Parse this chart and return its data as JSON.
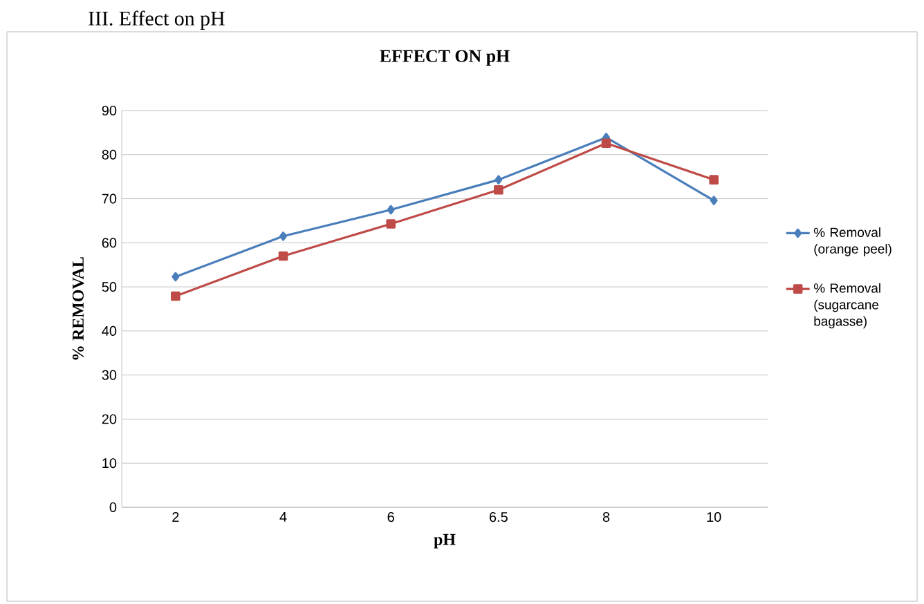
{
  "chart_data": {
    "type": "line",
    "title": "EFFECT ON pH",
    "xlabel": "pH",
    "ylabel": "% REMOVAL",
    "annotations": [
      "III.  Effect on pH"
    ],
    "categories": [
      "2",
      "4",
      "6",
      "6.5",
      "8",
      "10"
    ],
    "ylim": [
      0,
      90
    ],
    "yticks": [
      0,
      10,
      20,
      30,
      40,
      50,
      60,
      70,
      80,
      90
    ],
    "grid": "y",
    "legend": "right",
    "series": [
      {
        "name": "% Removal (orange peel)",
        "color": "#4a7ebb",
        "marker": "diamond",
        "values": [
          52.3,
          61.5,
          67.5,
          74.3,
          83.9,
          69.6
        ]
      },
      {
        "name": "% Removal (sugarcane bagasse)",
        "color": "#be4b48",
        "marker": "square",
        "values": [
          47.9,
          57,
          64.3,
          72,
          82.6,
          74.3
        ]
      }
    ]
  }
}
